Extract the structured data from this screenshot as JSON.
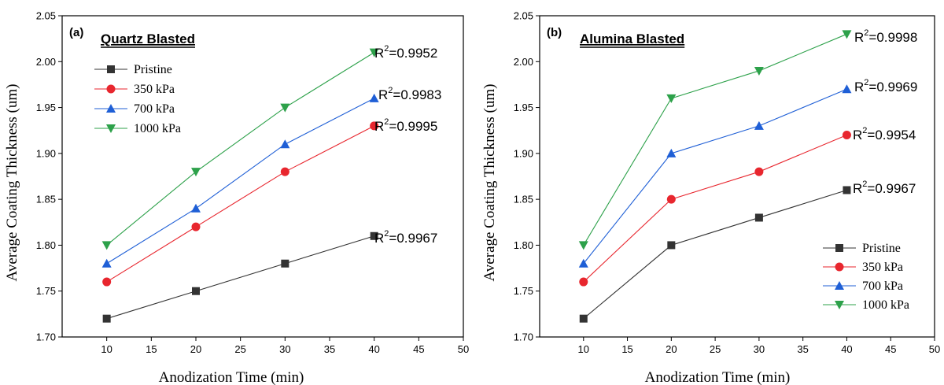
{
  "chart_data": [
    {
      "type": "line",
      "panel_label": "(a)",
      "title": "Quartz Blasted",
      "xlabel": "Anodization Time (min)",
      "ylabel": "Average Coating Thickness (um)",
      "xlim": [
        5,
        50
      ],
      "ylim": [
        1.7,
        2.05
      ],
      "xticks": [
        10,
        15,
        20,
        25,
        30,
        35,
        40,
        45,
        50
      ],
      "yticks": [
        "1.70",
        "1.75",
        "1.80",
        "1.85",
        "1.90",
        "1.95",
        "2.00",
        "2.05"
      ],
      "x": [
        10,
        20,
        30,
        40
      ],
      "legend_position": "top-left",
      "series": [
        {
          "name": "Pristine",
          "values": [
            1.72,
            1.75,
            1.78,
            1.81
          ],
          "color": "#333333",
          "marker": "square",
          "r2": "=0.9967"
        },
        {
          "name": "350 kPa",
          "values": [
            1.76,
            1.82,
            1.88,
            1.93
          ],
          "color": "#e8262e",
          "marker": "circle",
          "r2": "=0.9995"
        },
        {
          "name": "700 kPa",
          "values": [
            1.78,
            1.84,
            1.91,
            1.96
          ],
          "color": "#1f5fd6",
          "marker": "triangle-up",
          "r2": "=0.9983"
        },
        {
          "name": "1000 kPa",
          "values": [
            1.8,
            1.88,
            1.95,
            2.01
          ],
          "color": "#2da14a",
          "marker": "triangle-down",
          "r2": "=0.9952"
        }
      ]
    },
    {
      "type": "line",
      "panel_label": "(b)",
      "title": "Alumina Blasted",
      "xlabel": "Anodization Time (min)",
      "ylabel": "Average Coating Thickness (um)",
      "xlim": [
        5,
        50
      ],
      "ylim": [
        1.7,
        2.05
      ],
      "xticks": [
        10,
        15,
        20,
        25,
        30,
        35,
        40,
        45,
        50
      ],
      "yticks": [
        "1.70",
        "1.75",
        "1.80",
        "1.85",
        "1.90",
        "1.95",
        "2.00",
        "2.05"
      ],
      "x": [
        10,
        20,
        30,
        40
      ],
      "legend_position": "bottom-right",
      "series": [
        {
          "name": "Pristine",
          "values": [
            1.72,
            1.8,
            1.83,
            1.86
          ],
          "color": "#333333",
          "marker": "square",
          "r2": "=0.9967"
        },
        {
          "name": "350 kPa",
          "values": [
            1.76,
            1.85,
            1.88,
            1.92
          ],
          "color": "#e8262e",
          "marker": "circle",
          "r2": "=0.9954"
        },
        {
          "name": "700 kPa",
          "values": [
            1.78,
            1.9,
            1.93,
            1.97
          ],
          "color": "#1f5fd6",
          "marker": "triangle-up",
          "r2": "=0.9969"
        },
        {
          "name": "1000 kPa",
          "values": [
            1.8,
            1.96,
            1.99,
            2.03
          ],
          "color": "#2da14a",
          "marker": "triangle-down",
          "r2": "=0.9998"
        }
      ]
    }
  ]
}
